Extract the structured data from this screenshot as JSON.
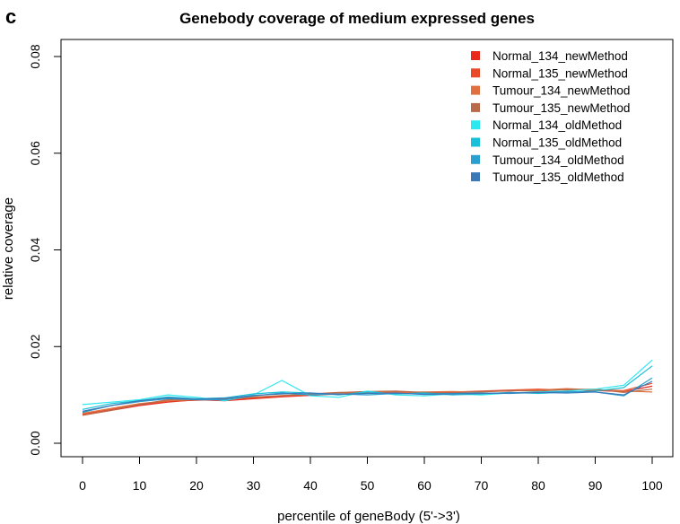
{
  "panel_label": "c",
  "chart_data": {
    "type": "line",
    "title": "Genebody coverage of medium expressed genes",
    "xlabel": "percentile of geneBody (5'->3')",
    "ylabel": "relative coverage",
    "xlim": [
      0,
      100
    ],
    "ylim": [
      0,
      0.08
    ],
    "x_ticks": [
      0,
      10,
      20,
      30,
      40,
      50,
      60,
      70,
      80,
      90,
      100
    ],
    "x_tick_labels": [
      "0",
      "10",
      "20",
      "30",
      "40",
      "50",
      "60",
      "70",
      "80",
      "90",
      "100"
    ],
    "y_ticks": [
      0,
      0.02,
      0.04,
      0.06,
      0.08
    ],
    "y_tick_labels": [
      "0.00",
      "0.02",
      "0.04",
      "0.06",
      "0.08"
    ],
    "legend_position": "top-right",
    "x": [
      0,
      5,
      10,
      15,
      20,
      25,
      30,
      35,
      40,
      45,
      50,
      55,
      60,
      65,
      70,
      75,
      80,
      85,
      90,
      95,
      100
    ],
    "series": [
      {
        "name": "Normal_134_newMethod",
        "color": "#e8291c",
        "values": [
          0.0058,
          0.0068,
          0.0078,
          0.0085,
          0.009,
          0.0088,
          0.0092,
          0.0096,
          0.0099,
          0.0102,
          0.0106,
          0.0104,
          0.0103,
          0.0105,
          0.0107,
          0.0108,
          0.011,
          0.0111,
          0.0109,
          0.0107,
          0.0118
        ]
      },
      {
        "name": "Normal_135_newMethod",
        "color": "#e84a2a",
        "values": [
          0.006,
          0.007,
          0.008,
          0.0087,
          0.0089,
          0.0091,
          0.0094,
          0.0097,
          0.01,
          0.0103,
          0.0105,
          0.0106,
          0.0104,
          0.0106,
          0.0108,
          0.011,
          0.0112,
          0.011,
          0.0111,
          0.0109,
          0.0124
        ]
      },
      {
        "name": "Tumour_134_newMethod",
        "color": "#e07040",
        "values": [
          0.0062,
          0.0072,
          0.0082,
          0.0088,
          0.0091,
          0.0092,
          0.0095,
          0.0099,
          0.0101,
          0.0104,
          0.0106,
          0.0105,
          0.0106,
          0.0107,
          0.0106,
          0.0109,
          0.011,
          0.0113,
          0.011,
          0.0108,
          0.0106
        ]
      },
      {
        "name": "Tumour_135_newMethod",
        "color": "#b86a4a",
        "values": [
          0.0058,
          0.0068,
          0.008,
          0.009,
          0.0092,
          0.009,
          0.0096,
          0.0098,
          0.0102,
          0.0105,
          0.0107,
          0.0108,
          0.0105,
          0.0104,
          0.0107,
          0.0109,
          0.0108,
          0.0111,
          0.0112,
          0.0105,
          0.0112
        ]
      },
      {
        "name": "Normal_134_oldMethod",
        "color": "#2ee8f0",
        "values": [
          0.008,
          0.0085,
          0.009,
          0.01,
          0.0095,
          0.0088,
          0.01,
          0.013,
          0.0098,
          0.0095,
          0.0108,
          0.01,
          0.0098,
          0.0102,
          0.01,
          0.0104,
          0.0106,
          0.0108,
          0.0112,
          0.012,
          0.0172
        ]
      },
      {
        "name": "Normal_135_oldMethod",
        "color": "#18c0d8",
        "values": [
          0.007,
          0.0082,
          0.0088,
          0.0096,
          0.0092,
          0.0094,
          0.0102,
          0.0106,
          0.0104,
          0.01,
          0.0106,
          0.0102,
          0.0104,
          0.01,
          0.0102,
          0.0105,
          0.0103,
          0.0106,
          0.0108,
          0.0115,
          0.016
        ]
      },
      {
        "name": "Tumour_134_oldMethod",
        "color": "#2aa0d0",
        "values": [
          0.0064,
          0.0078,
          0.0086,
          0.0092,
          0.009,
          0.009,
          0.0098,
          0.0104,
          0.01,
          0.0102,
          0.01,
          0.0103,
          0.0102,
          0.0103,
          0.0104,
          0.0103,
          0.0105,
          0.0107,
          0.0106,
          0.0098,
          0.0135
        ]
      },
      {
        "name": "Tumour_135_oldMethod",
        "color": "#3a78b8",
        "values": [
          0.0066,
          0.0078,
          0.0088,
          0.0094,
          0.0091,
          0.0093,
          0.0099,
          0.0102,
          0.0104,
          0.0101,
          0.0103,
          0.0104,
          0.0101,
          0.0102,
          0.0103,
          0.0104,
          0.0105,
          0.0104,
          0.0106,
          0.01,
          0.0128
        ]
      }
    ]
  }
}
